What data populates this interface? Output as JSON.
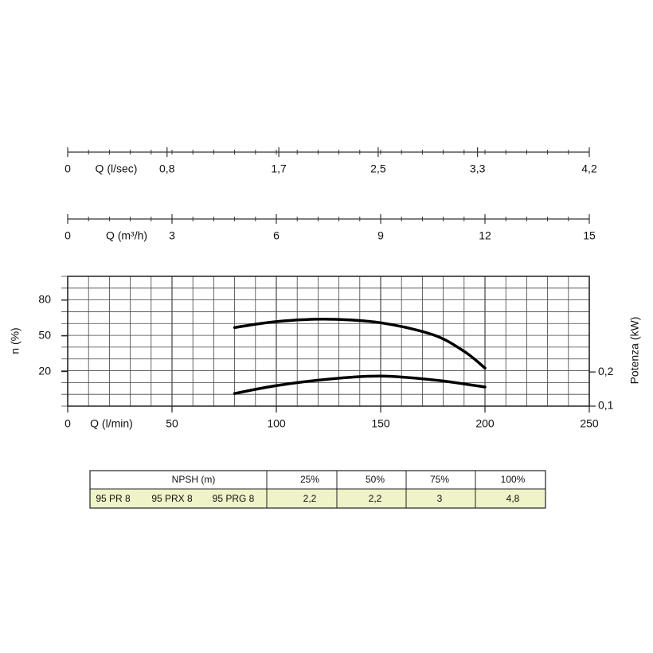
{
  "chart_data": [
    {
      "type": "axis",
      "xlabel": "Q (l/sec)",
      "xlim": [
        0,
        4.2
      ],
      "xticks": [
        0,
        {
          "value": 0.8,
          "label": "0,8"
        },
        {
          "value": 1.7,
          "label": "1,7"
        },
        {
          "value": 2.5,
          "label": "2,5"
        },
        {
          "value": 3.3,
          "label": "3,3"
        },
        {
          "value": 4.2,
          "label": "4,2"
        }
      ]
    },
    {
      "type": "axis",
      "xlabel": "Q (m³/h)",
      "xlim": [
        0,
        15
      ],
      "xticks": [
        0,
        3,
        6,
        9,
        12,
        15
      ]
    },
    {
      "type": "line",
      "xlabel": "Q (l/min)",
      "ylabel": "n (%)",
      "y2label": "Potenza (kW)",
      "xlim": [
        0,
        250
      ],
      "xticks": [
        0,
        50,
        100,
        150,
        200,
        250
      ],
      "ylim": [
        -9,
        100
      ],
      "yticks": [
        20,
        50,
        80
      ],
      "y2lim": [
        0.1,
        0.48
      ],
      "y2ticks": [
        {
          "value": 0.1,
          "label": "0,1"
        },
        {
          "value": 0.2,
          "label": "0,2"
        }
      ],
      "grid": true,
      "x": [
        80,
        100,
        125,
        150,
        175,
        190,
        200
      ],
      "series": [
        {
          "color": "#000000",
          "values": [
            57,
            62,
            64,
            61,
            51,
            37,
            23
          ]
        },
        {
          "color": "#000000",
          "axis": "y2",
          "values": [
            0.137,
            0.16,
            0.179,
            0.188,
            0.177,
            0.165,
            0.156
          ]
        }
      ]
    }
  ],
  "table": {
    "header": [
      "NPSH (m)",
      "25%",
      "50%",
      "75%",
      "100%"
    ],
    "models": [
      "95 PR 8",
      "95 PRX 8",
      "95 PRG 8"
    ],
    "values": [
      "2,2",
      "2,2",
      "3",
      "4,8"
    ]
  }
}
